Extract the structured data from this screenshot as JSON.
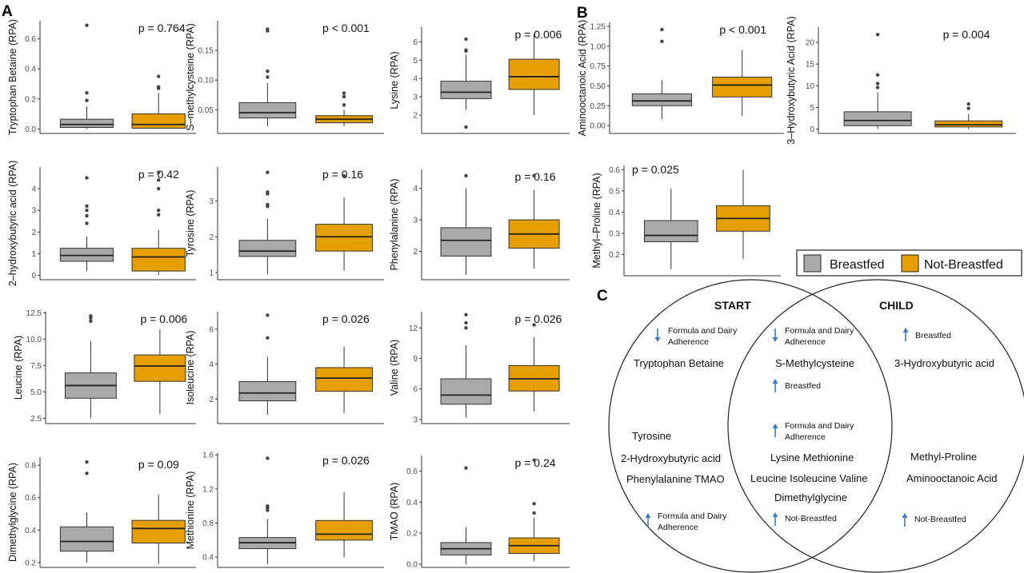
{
  "colors": {
    "breastfed": "#a9a9a9",
    "not_breastfed": "#e69f00",
    "outlier": "#444444",
    "arrow": "#3b7dc4",
    "axis": "#333333"
  },
  "panel_labels": {
    "a": "A",
    "b": "B",
    "c": "C"
  },
  "legend": {
    "items": [
      "Breastfed",
      "Not-Breastfed"
    ]
  },
  "chart_data": [
    {
      "type": "box",
      "panel": "A",
      "ylabel": "Tryptophan Betaine (RPA)",
      "pvalue": "p = 0.764",
      "ylim": [
        -0.03,
        0.72
      ],
      "yticks": [
        0.0,
        0.2,
        0.4,
        0.6
      ],
      "ytick_labels": [
        "0.0",
        "0.2",
        "0.4",
        "0.6"
      ],
      "categories": [
        "Breastfed",
        "Not-Breastfed"
      ],
      "boxes": [
        {
          "whisker_low": 0.0,
          "q1": 0.01,
          "median": 0.03,
          "q3": 0.065,
          "whisker_high": 0.15,
          "outliers": [
            0.19,
            0.24,
            0.69
          ]
        },
        {
          "whisker_low": 0.0,
          "q1": 0.005,
          "median": 0.03,
          "q3": 0.1,
          "whisker_high": 0.24,
          "outliers": [
            0.27,
            0.28,
            0.35
          ]
        }
      ]
    },
    {
      "type": "box",
      "panel": "A",
      "ylabel": "S–methylcysteine (RPA)",
      "pvalue": "p  < 0.001",
      "ylim": [
        0.01,
        0.2
      ],
      "yticks": [
        0.05,
        0.1,
        0.15
      ],
      "ytick_labels": [
        "0.05",
        "0.10",
        "0.15"
      ],
      "categories": [
        "Breastfed",
        "Not-Breastfed"
      ],
      "boxes": [
        {
          "whisker_low": 0.022,
          "q1": 0.036,
          "median": 0.045,
          "q3": 0.062,
          "whisker_high": 0.095,
          "outliers": [
            0.105,
            0.115,
            0.183,
            0.186
          ]
        },
        {
          "whisker_low": 0.022,
          "q1": 0.028,
          "median": 0.034,
          "q3": 0.04,
          "whisker_high": 0.05,
          "outliers": [
            0.058,
            0.072,
            0.078
          ]
        }
      ]
    },
    {
      "type": "box",
      "panel": "A",
      "ylabel": "Lysine (RPA)",
      "pvalue": "p = 0.006",
      "ylim": [
        1.0,
        6.8
      ],
      "yticks": [
        2,
        3,
        4,
        5,
        6
      ],
      "ytick_labels": [
        "2",
        "3",
        "4",
        "5",
        "6"
      ],
      "categories": [
        "Breastfed",
        "Not-Breastfed"
      ],
      "boxes": [
        {
          "whisker_low": 2.3,
          "q1": 2.9,
          "median": 3.25,
          "q3": 3.85,
          "whisker_high": 5.3,
          "outliers": [
            1.35,
            5.5,
            5.55,
            6.15
          ]
        },
        {
          "whisker_low": 2.0,
          "q1": 3.4,
          "median": 4.1,
          "q3": 5.05,
          "whisker_high": 6.45,
          "outliers": []
        }
      ]
    },
    {
      "type": "box",
      "panel": "A",
      "ylabel": "2–hydroxybutyric acid (RPA)",
      "pvalue": "p = 0.42",
      "ylim": [
        -0.2,
        5.0
      ],
      "yticks": [
        0,
        1,
        2,
        3,
        4
      ],
      "ytick_labels": [
        "0",
        "1",
        "2",
        "3",
        "4"
      ],
      "categories": [
        "Breastfed",
        "Not-Breastfed"
      ],
      "boxes": [
        {
          "whisker_low": 0.2,
          "q1": 0.65,
          "median": 0.92,
          "q3": 1.25,
          "whisker_high": 1.8,
          "outliers": [
            2.4,
            2.75,
            3.0,
            3.2,
            4.5
          ]
        },
        {
          "whisker_low": 0.0,
          "q1": 0.2,
          "median": 0.85,
          "q3": 1.25,
          "whisker_high": 2.1,
          "outliers": [
            2.8,
            3.0,
            4.0,
            4.4,
            4.75
          ]
        }
      ]
    },
    {
      "type": "box",
      "panel": "A",
      "ylabel": "Tyrosine (RPA)",
      "pvalue": "p = 0.16",
      "ylim": [
        0.8,
        3.95
      ],
      "yticks": [
        1,
        2,
        3
      ],
      "ytick_labels": [
        "1",
        "2",
        "3"
      ],
      "categories": [
        "Breastfed",
        "Not-Breastfed"
      ],
      "boxes": [
        {
          "whisker_low": 0.95,
          "q1": 1.45,
          "median": 1.6,
          "q3": 1.9,
          "whisker_high": 2.5,
          "outliers": [
            2.85,
            2.9,
            3.2,
            3.25,
            3.8
          ]
        },
        {
          "whisker_low": 1.05,
          "q1": 1.6,
          "median": 2.0,
          "q3": 2.35,
          "whisker_high": 3.1,
          "outliers": [
            3.7
          ]
        }
      ]
    },
    {
      "type": "box",
      "panel": "A",
      "ylabel": "Phenylalanine (RPA)",
      "pvalue": "p = 0.16",
      "ylim": [
        1.1,
        4.6
      ],
      "yticks": [
        2,
        3,
        4
      ],
      "ytick_labels": [
        "2",
        "3",
        "4"
      ],
      "categories": [
        "Breastfed",
        "Not-Breastfed"
      ],
      "boxes": [
        {
          "whisker_low": 1.25,
          "q1": 1.85,
          "median": 2.35,
          "q3": 2.75,
          "whisker_high": 4.0,
          "outliers": [
            4.4
          ]
        },
        {
          "whisker_low": 1.45,
          "q1": 2.1,
          "median": 2.55,
          "q3": 3.0,
          "whisker_high": 3.95,
          "outliers": [
            4.4
          ]
        }
      ]
    },
    {
      "type": "box",
      "panel": "A",
      "ylabel": "Leucine (RPA)",
      "pvalue": "p = 0.006",
      "ylim": [
        2.0,
        12.6
      ],
      "yticks": [
        2.5,
        5.0,
        7.5,
        10.0,
        12.5
      ],
      "ytick_labels": [
        "2.5",
        "5.0",
        "7.5",
        "10.0",
        "12.5"
      ],
      "categories": [
        "Breastfed",
        "Not-Breastfed"
      ],
      "boxes": [
        {
          "whisker_low": 2.5,
          "q1": 4.4,
          "median": 5.6,
          "q3": 6.8,
          "whisker_high": 9.8,
          "outliers": [
            11.7,
            12.0,
            12.2
          ]
        },
        {
          "whisker_low": 2.9,
          "q1": 6.0,
          "median": 7.45,
          "q3": 8.5,
          "whisker_high": 10.9,
          "outliers": []
        }
      ]
    },
    {
      "type": "box",
      "panel": "A",
      "ylabel": "Isoleucine (RPA)",
      "pvalue": "p = 0.026",
      "ylim": [
        0.6,
        7.0
      ],
      "yticks": [
        2,
        4,
        6
      ],
      "ytick_labels": [
        "2",
        "4",
        "6"
      ],
      "categories": [
        "Breastfed",
        "Not-Breastfed"
      ],
      "boxes": [
        {
          "whisker_low": 1.1,
          "q1": 1.9,
          "median": 2.35,
          "q3": 3.0,
          "whisker_high": 4.4,
          "outliers": [
            5.5,
            6.8
          ]
        },
        {
          "whisker_low": 1.2,
          "q1": 2.45,
          "median": 3.2,
          "q3": 3.8,
          "whisker_high": 5.0,
          "outliers": []
        }
      ]
    },
    {
      "type": "box",
      "panel": "A",
      "ylabel": "Valine (RPA)",
      "pvalue": "p = 0.026",
      "ylim": [
        2.6,
        13.6
      ],
      "yticks": [
        3,
        6,
        9,
        12
      ],
      "ytick_labels": [
        "3",
        "6",
        "9",
        "12"
      ],
      "categories": [
        "Breastfed",
        "Not-Breastfed"
      ],
      "boxes": [
        {
          "whisker_low": 3.2,
          "q1": 4.5,
          "median": 5.4,
          "q3": 7.0,
          "whisker_high": 10.3,
          "outliers": [
            12.0,
            12.5,
            13.3
          ]
        },
        {
          "whisker_low": 3.8,
          "q1": 5.8,
          "median": 7.0,
          "q3": 8.3,
          "whisker_high": 11.1,
          "outliers": [
            12.3
          ]
        }
      ]
    },
    {
      "type": "box",
      "panel": "A",
      "ylabel": "Dimethylglycine (RPA)",
      "pvalue": "p = 0.09",
      "ylim": [
        0.17,
        0.85
      ],
      "yticks": [
        0.2,
        0.4,
        0.6,
        0.8
      ],
      "ytick_labels": [
        "0.2",
        "0.4",
        "0.6",
        "0.8"
      ],
      "categories": [
        "Breastfed",
        "Not-Breastfed"
      ],
      "boxes": [
        {
          "whisker_low": 0.2,
          "q1": 0.27,
          "median": 0.33,
          "q3": 0.42,
          "whisker_high": 0.51,
          "outliers": [
            0.75,
            0.82
          ]
        },
        {
          "whisker_low": 0.19,
          "q1": 0.32,
          "median": 0.41,
          "q3": 0.46,
          "whisker_high": 0.62,
          "outliers": []
        }
      ]
    },
    {
      "type": "box",
      "panel": "A",
      "ylabel": "Methionine (RPA)",
      "pvalue": "p = 0.026",
      "ylim": [
        0.28,
        1.62
      ],
      "yticks": [
        0.4,
        0.8,
        1.2,
        1.6
      ],
      "ytick_labels": [
        "0.4",
        "0.8",
        "1.2",
        "1.6"
      ],
      "categories": [
        "Breastfed",
        "Not-Breastfed"
      ],
      "boxes": [
        {
          "whisker_low": 0.32,
          "q1": 0.5,
          "median": 0.57,
          "q3": 0.63,
          "whisker_high": 0.85,
          "outliers": [
            0.95,
            0.98,
            1.0,
            1.56
          ]
        },
        {
          "whisker_low": 0.4,
          "q1": 0.6,
          "median": 0.67,
          "q3": 0.83,
          "whisker_high": 1.16,
          "outliers": []
        }
      ]
    },
    {
      "type": "box",
      "panel": "A",
      "ylabel": "TMAO (RPA)",
      "pvalue": "p = 0.24",
      "ylim": [
        -0.02,
        0.7
      ],
      "yticks": [
        0.0,
        0.2,
        0.4,
        0.6
      ],
      "ytick_labels": [
        "0.0",
        "0.2",
        "0.4",
        "0.6"
      ],
      "categories": [
        "Breastfed",
        "Not-Breastfed"
      ],
      "boxes": [
        {
          "whisker_low": 0.0,
          "q1": 0.06,
          "median": 0.1,
          "q3": 0.14,
          "whisker_high": 0.24,
          "outliers": [
            0.62
          ]
        },
        {
          "whisker_low": 0.02,
          "q1": 0.07,
          "median": 0.12,
          "q3": 0.17,
          "whisker_high": 0.3,
          "outliers": [
            0.33,
            0.39,
            0.67
          ]
        }
      ]
    },
    {
      "type": "box",
      "panel": "B",
      "ylabel": "Aminooctanoic Acid (RPA)",
      "pvalue": "p  < 0.001",
      "ylim": [
        -0.1,
        1.3
      ],
      "yticks": [
        0.0,
        0.25,
        0.5,
        0.75,
        1.0,
        1.25
      ],
      "ytick_labels": [
        "0.00",
        "0.25",
        "0.50",
        "0.75",
        "1.00",
        "1.25"
      ],
      "categories": [
        "Breastfed",
        "Not-Breastfed"
      ],
      "boxes": [
        {
          "whisker_low": 0.08,
          "q1": 0.25,
          "median": 0.31,
          "q3": 0.4,
          "whisker_high": 0.57,
          "outliers": [
            1.06,
            1.21
          ]
        },
        {
          "whisker_low": 0.12,
          "q1": 0.36,
          "median": 0.51,
          "q3": 0.61,
          "whisker_high": 0.95,
          "outliers": []
        }
      ]
    },
    {
      "type": "box",
      "panel": "B",
      "ylabel": "3–Hydroxybutyric Acid (RPA)",
      "pvalue": "p = 0.004",
      "ylim": [
        -1.0,
        23.5
      ],
      "yticks": [
        0,
        5,
        10,
        15,
        20
      ],
      "ytick_labels": [
        "0",
        "5",
        "10",
        "15",
        "20"
      ],
      "categories": [
        "Breastfed",
        "Not-Breastfed"
      ],
      "boxes": [
        {
          "whisker_low": 0.0,
          "q1": 0.8,
          "median": 2.0,
          "q3": 4.0,
          "whisker_high": 8.5,
          "outliers": [
            9.6,
            10.5,
            12.5,
            21.8
          ]
        },
        {
          "whisker_low": 0.0,
          "q1": 0.5,
          "median": 1.0,
          "q3": 1.9,
          "whisker_high": 3.5,
          "outliers": [
            4.8,
            5.8
          ]
        }
      ]
    },
    {
      "type": "box",
      "panel": "B",
      "ylabel": "Methyl–Proline (RPA)",
      "pvalue": "p = 0.025",
      "ylim": [
        0.1,
        0.62
      ],
      "yticks": [
        0.2,
        0.3,
        0.4,
        0.5,
        0.6
      ],
      "ytick_labels": [
        "0.2",
        "0.3",
        "0.4",
        "0.5",
        "0.6"
      ],
      "categories": [
        "Breastfed",
        "Not-Breastfed"
      ],
      "boxes": [
        {
          "whisker_low": 0.13,
          "q1": 0.26,
          "median": 0.29,
          "q3": 0.36,
          "whisker_high": 0.51,
          "outliers": []
        },
        {
          "whisker_low": 0.18,
          "q1": 0.31,
          "median": 0.37,
          "q3": 0.43,
          "whisker_high": 0.6,
          "outliers": []
        }
      ]
    }
  ],
  "venn": {
    "left_title": "START",
    "right_title": "CHILD",
    "left_only": {
      "note_top": {
        "direction": "down",
        "lines": [
          "Formula and Dairy",
          "Adherence"
        ]
      },
      "top_item": "Tryptophan Betaine",
      "items": [
        "Tyrosine",
        "2-Hydroxybutyric acid",
        "Phenylalanine  TMAO"
      ],
      "note_bottom": {
        "direction": "up",
        "lines": [
          "Formula and Dairy",
          "Adherence"
        ]
      }
    },
    "overlap": {
      "note_top": {
        "direction": "down",
        "lines": [
          "Formula and Dairy",
          "Adherence"
        ]
      },
      "top_item": "S-Methylcysteine",
      "note_mid": {
        "direction": "up",
        "lines": [
          "Breastfed"
        ]
      },
      "note_mid2": {
        "direction": "up",
        "lines": [
          "Formula and Dairy",
          "Adherence"
        ]
      },
      "items": [
        "Lysine    Methionine",
        "Leucine  Isoleucine  Valine",
        "Dimethylglycine"
      ],
      "note_bottom": {
        "direction": "up",
        "lines": [
          "Not-Breastfed"
        ]
      }
    },
    "right_only": {
      "note_top": {
        "direction": "up",
        "lines": [
          "Breastfed"
        ]
      },
      "top_item": "3-Hydroxybutyric acid",
      "items": [
        "Methyl-Proline",
        "Aminooctanoic Acid"
      ],
      "note_bottom": {
        "direction": "up",
        "lines": [
          "Not-Breastfed"
        ]
      }
    }
  }
}
